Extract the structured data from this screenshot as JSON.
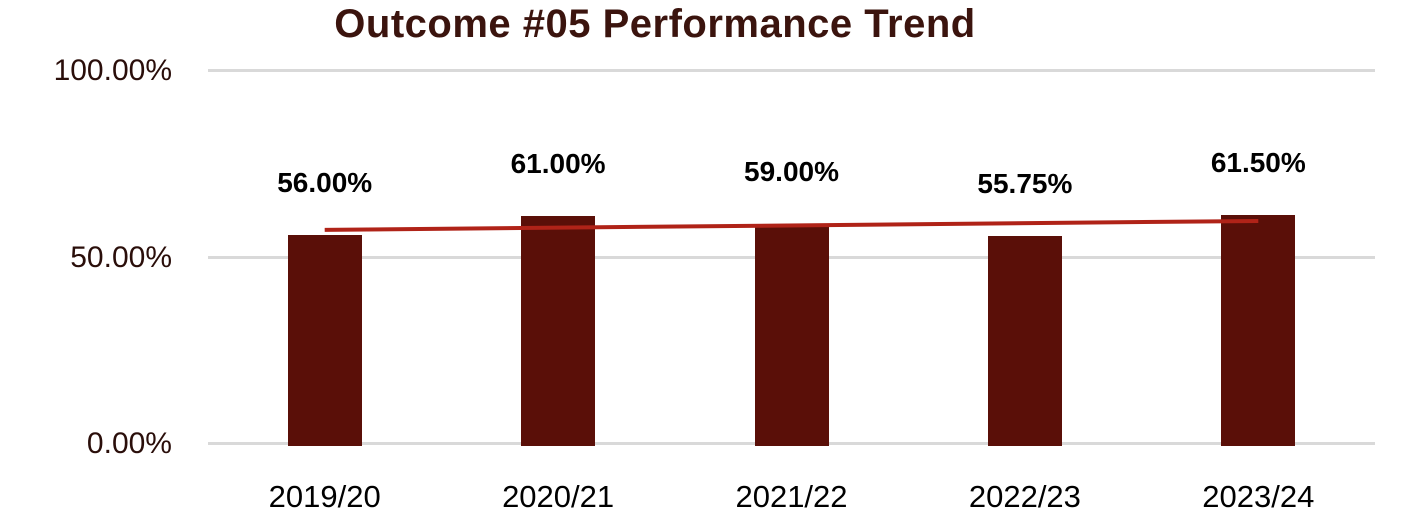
{
  "chart_data": {
    "type": "bar",
    "title": "Outcome #05 Performance Trend",
    "categories": [
      "2019/20",
      "2020/21",
      "2021/22",
      "2022/23",
      "2023/24"
    ],
    "series": [
      {
        "name": "Performance",
        "values": [
          56.0,
          61.0,
          59.0,
          55.75,
          61.5
        ],
        "labels": [
          "56.00%",
          "61.00%",
          "59.00%",
          "55.75%",
          "61.50%"
        ]
      }
    ],
    "trendline": {
      "type": "linear",
      "start_pct": 57.4,
      "end_pct": 59.8
    },
    "y_axis": {
      "ticks": [
        "100.00%",
        "50.00%",
        "0.00%"
      ],
      "min": 0,
      "max": 100
    },
    "grid": true,
    "legend": "none",
    "colors": {
      "bar": "#5A0F08",
      "trendline": "#B02318",
      "title": "#3B140E",
      "axis_label": "#2A0E0A",
      "data_label": "#000000",
      "gridline": "#D9D9D9",
      "background": "#FFFFFF"
    }
  }
}
